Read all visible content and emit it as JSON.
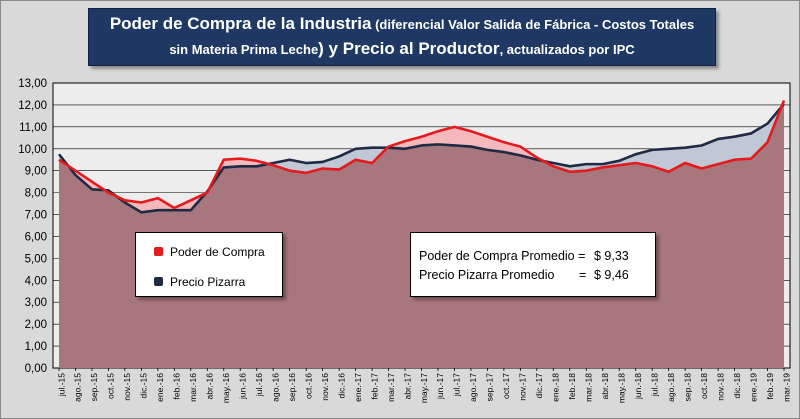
{
  "title": {
    "line1_big": "Poder de Compra de la Industria",
    "line1_small": " (diferencial Valor Salida de Fábrica - Costos Totales",
    "line2_small_a": "sin Materia Prima Leche",
    "line2_big": ") y Precio al Productor",
    "line2_small_b": ", actualizados por IPC"
  },
  "legend": {
    "items": [
      {
        "label": "Poder de Compra",
        "color": "#e41a1c"
      },
      {
        "label": "Precio Pizarra",
        "color": "#1f2a44"
      }
    ]
  },
  "stats": {
    "row1_label": "Poder de Compra Promedio = ",
    "row1_value": "$ 9,33",
    "row2_label": "Precio Pizarra Promedio",
    "row2_eq": "=",
    "row2_value": "$ 9,46"
  },
  "chart_data": {
    "type": "area",
    "ylim": [
      0,
      13
    ],
    "yticks": [
      "0,00",
      "1,00",
      "2,00",
      "3,00",
      "4,00",
      "5,00",
      "6,00",
      "7,00",
      "8,00",
      "9,00",
      "10,00",
      "11,00",
      "12,00",
      "13,00"
    ],
    "grid": true,
    "categories": [
      "jul.-15",
      "ago.-15",
      "sep.-15",
      "oct.-15",
      "nov.-15",
      "dic.-15",
      "ene.-16",
      "feb.-16",
      "mar.-16",
      "abr.-16",
      "may.-16",
      "jun.-16",
      "jul.-16",
      "ago.-16",
      "sep.-16",
      "oct.-16",
      "nov.-16",
      "dic.-16",
      "ene.-17",
      "feb.-17",
      "mar.-17",
      "abr.-17",
      "may.-17",
      "jun.-17",
      "jul.-17",
      "ago.-17",
      "sep.-17",
      "oct.-17",
      "nov.-17",
      "dic.-17",
      "ene.-18",
      "feb.-18",
      "mar.-18",
      "abr.-18",
      "may.-18",
      "jun.-18",
      "jul.-18",
      "ago.-18",
      "sep.-18",
      "oct.-18",
      "nov.-18",
      "dic.-18",
      "ene.-19",
      "feb.-19",
      "mar.-19"
    ],
    "series": [
      {
        "name": "Poder de Compra",
        "color": "#e41a1c",
        "values": [
          9.5,
          9.0,
          8.5,
          8.0,
          7.65,
          7.55,
          7.75,
          7.3,
          7.65,
          8.0,
          9.5,
          9.55,
          9.45,
          9.25,
          9.0,
          8.9,
          9.1,
          9.05,
          9.5,
          9.35,
          10.1,
          10.35,
          10.55,
          10.8,
          11.0,
          10.8,
          10.55,
          10.3,
          10.1,
          9.6,
          9.2,
          8.95,
          9.0,
          9.15,
          9.25,
          9.35,
          9.2,
          8.95,
          9.35,
          9.1,
          9.3,
          9.5,
          9.55,
          10.3,
          12.2
        ]
      },
      {
        "name": "Precio Pizarra",
        "color": "#1f2a44",
        "values": [
          9.75,
          8.8,
          8.15,
          8.1,
          7.55,
          7.1,
          7.2,
          7.2,
          7.2,
          8.05,
          9.15,
          9.2,
          9.2,
          9.35,
          9.5,
          9.35,
          9.4,
          9.65,
          10.0,
          10.05,
          10.05,
          10.0,
          10.15,
          10.2,
          10.15,
          10.1,
          9.95,
          9.85,
          9.7,
          9.5,
          9.35,
          9.2,
          9.3,
          9.3,
          9.45,
          9.75,
          9.95,
          10.0,
          10.05,
          10.15,
          10.45,
          10.55,
          10.7,
          11.15,
          12.05
        ]
      }
    ]
  }
}
